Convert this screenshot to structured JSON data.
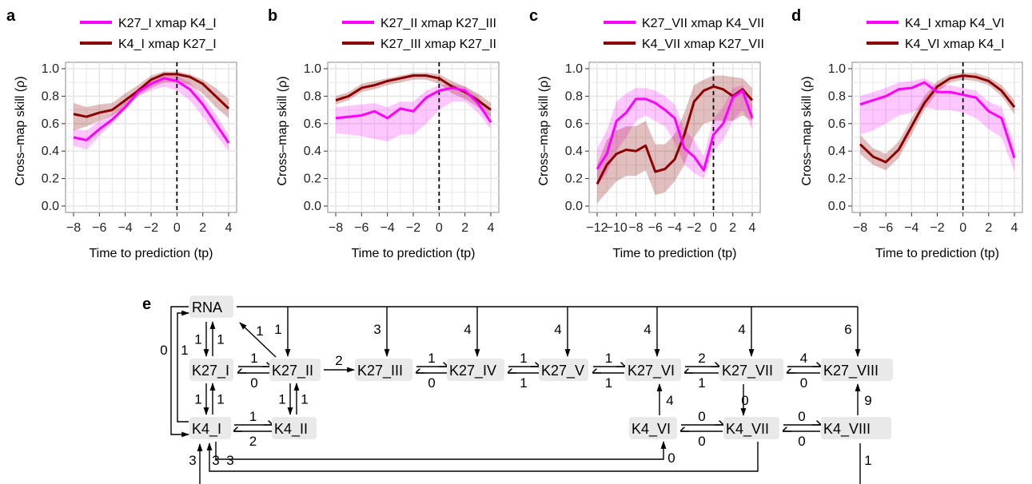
{
  "colors": {
    "magenta": "#ff00ff",
    "darkred": "#8b0000",
    "grid": "#e6e6e6",
    "node_bg": "#e9e9e9"
  },
  "chart_data": [
    {
      "panel": "a",
      "type": "line",
      "xlabel": "Time to prediction (tp)",
      "ylabel": "Cross–map skill (ρ)",
      "xlim": [
        -8,
        4
      ],
      "ylim": [
        0,
        1
      ],
      "xticks": [
        "−8",
        "−6",
        "−4",
        "−2",
        "0",
        "2",
        "4"
      ],
      "yticks": [
        "0.0",
        "0.2",
        "0.4",
        "0.6",
        "0.8",
        "1.0"
      ],
      "vline": 0,
      "grid": true,
      "legend": "top",
      "x": [
        -8,
        -7,
        -6,
        -5,
        -4,
        -3,
        -2,
        -1,
        0,
        1,
        2,
        3,
        4
      ],
      "series": [
        {
          "name": "K27_I xmap K4_I",
          "color": "magenta",
          "values": [
            0.5,
            0.48,
            0.56,
            0.63,
            0.72,
            0.83,
            0.89,
            0.93,
            0.91,
            0.85,
            0.74,
            0.6,
            0.46
          ],
          "lower": [
            0.44,
            0.41,
            0.51,
            0.6,
            0.7,
            0.8,
            0.84,
            0.87,
            0.84,
            0.77,
            0.65,
            0.52,
            0.4
          ],
          "upper": [
            0.56,
            0.55,
            0.62,
            0.67,
            0.76,
            0.86,
            0.92,
            0.95,
            0.95,
            0.9,
            0.8,
            0.67,
            0.52
          ]
        },
        {
          "name": "K4_I xmap K27_I",
          "color": "darkred",
          "values": [
            0.67,
            0.65,
            0.68,
            0.7,
            0.77,
            0.84,
            0.92,
            0.96,
            0.96,
            0.94,
            0.89,
            0.8,
            0.71
          ],
          "lower": [
            0.55,
            0.58,
            0.62,
            0.66,
            0.72,
            0.8,
            0.86,
            0.9,
            0.9,
            0.88,
            0.82,
            0.72,
            0.64
          ],
          "upper": [
            0.75,
            0.72,
            0.74,
            0.75,
            0.82,
            0.88,
            0.95,
            0.98,
            0.98,
            0.96,
            0.92,
            0.86,
            0.78
          ]
        }
      ]
    },
    {
      "panel": "b",
      "type": "line",
      "xlabel": "Time to prediction (tp)",
      "ylabel": "Cross–map skill (ρ)",
      "xlim": [
        -8,
        4
      ],
      "ylim": [
        0,
        1
      ],
      "xticks": [
        "−8",
        "−6",
        "−4",
        "−2",
        "0",
        "2",
        "4"
      ],
      "yticks": [
        "0.0",
        "0.2",
        "0.4",
        "0.6",
        "0.8",
        "1.0"
      ],
      "vline": 0,
      "grid": true,
      "legend": "top",
      "x": [
        -8,
        -7,
        -6,
        -5,
        -4,
        -3,
        -2,
        -1,
        0,
        1,
        2,
        3,
        4
      ],
      "series": [
        {
          "name": "K27_II xmap K27_III",
          "color": "magenta",
          "values": [
            0.64,
            0.65,
            0.66,
            0.69,
            0.64,
            0.71,
            0.69,
            0.79,
            0.84,
            0.86,
            0.84,
            0.75,
            0.61
          ],
          "lower": [
            0.53,
            0.52,
            0.51,
            0.49,
            0.47,
            0.52,
            0.52,
            0.6,
            0.7,
            0.76,
            0.76,
            0.68,
            0.56
          ],
          "upper": [
            0.72,
            0.73,
            0.74,
            0.75,
            0.72,
            0.76,
            0.76,
            0.84,
            0.88,
            0.89,
            0.87,
            0.8,
            0.67
          ]
        },
        {
          "name": "K27_III xmap K27_II",
          "color": "darkred",
          "values": [
            0.77,
            0.8,
            0.86,
            0.88,
            0.91,
            0.93,
            0.95,
            0.95,
            0.93,
            0.87,
            0.83,
            0.77,
            0.7
          ],
          "lower": [
            0.74,
            0.77,
            0.83,
            0.85,
            0.88,
            0.9,
            0.92,
            0.92,
            0.89,
            0.82,
            0.78,
            0.72,
            0.65
          ],
          "upper": [
            0.8,
            0.83,
            0.89,
            0.91,
            0.93,
            0.95,
            0.97,
            0.97,
            0.96,
            0.91,
            0.87,
            0.82,
            0.75
          ]
        }
      ]
    },
    {
      "panel": "c",
      "type": "line",
      "xlabel": "Time to prediction (tp)",
      "ylabel": "Cross–map skill (ρ)",
      "xlim": [
        -12,
        4
      ],
      "ylim": [
        0,
        1
      ],
      "xticks": [
        "−12",
        "−10",
        "−8",
        "−6",
        "−4",
        "−2",
        "0",
        "2",
        "4"
      ],
      "yticks": [
        "0.0",
        "0.2",
        "0.4",
        "0.6",
        "0.8",
        "1.0"
      ],
      "vline": 0,
      "grid": true,
      "legend": "top",
      "x": [
        -12,
        -11,
        -10,
        -9,
        -8,
        -7,
        -6,
        -5,
        -4,
        -3,
        -2,
        -1,
        0,
        1,
        2,
        3,
        4
      ],
      "series": [
        {
          "name": "K27_VII xmap K4_VII",
          "color": "magenta",
          "values": [
            0.27,
            0.38,
            0.62,
            0.68,
            0.78,
            0.78,
            0.75,
            0.7,
            0.64,
            0.42,
            0.36,
            0.26,
            0.52,
            0.6,
            0.79,
            0.84,
            0.64
          ],
          "lower": [
            0.15,
            0.24,
            0.4,
            0.5,
            0.62,
            0.66,
            0.62,
            0.58,
            0.46,
            0.3,
            0.24,
            0.2,
            0.4,
            0.48,
            0.62,
            0.7,
            0.56
          ],
          "upper": [
            0.42,
            0.55,
            0.76,
            0.82,
            0.86,
            0.86,
            0.84,
            0.8,
            0.74,
            0.56,
            0.48,
            0.36,
            0.64,
            0.72,
            0.86,
            0.88,
            0.74
          ]
        },
        {
          "name": "K4_VII xmap K27_VII",
          "color": "darkred",
          "values": [
            0.16,
            0.3,
            0.38,
            0.41,
            0.4,
            0.44,
            0.25,
            0.27,
            0.34,
            0.52,
            0.76,
            0.84,
            0.87,
            0.85,
            0.8,
            0.85,
            0.77
          ],
          "lower": [
            0.02,
            0.1,
            0.18,
            0.22,
            0.22,
            0.26,
            0.08,
            0.1,
            0.18,
            0.3,
            0.5,
            0.6,
            0.62,
            0.62,
            0.62,
            0.66,
            0.62
          ],
          "upper": [
            0.3,
            0.48,
            0.55,
            0.58,
            0.58,
            0.62,
            0.45,
            0.45,
            0.52,
            0.68,
            0.88,
            0.92,
            0.95,
            0.95,
            0.94,
            0.93,
            0.86
          ]
        }
      ]
    },
    {
      "panel": "d",
      "type": "line",
      "xlabel": "Time to prediction (tp)",
      "ylabel": "Cross–map skill (ρ)",
      "xlim": [
        -8,
        4
      ],
      "ylim": [
        0,
        1
      ],
      "xticks": [
        "−8",
        "−6",
        "−4",
        "−2",
        "0",
        "2",
        "4"
      ],
      "yticks": [
        "0.0",
        "0.2",
        "0.4",
        "0.6",
        "0.8",
        "1.0"
      ],
      "vline": 0,
      "grid": true,
      "legend": "top",
      "x": [
        -8,
        -7,
        -6,
        -5,
        -4,
        -3,
        -2,
        -1,
        0,
        1,
        2,
        3,
        4
      ],
      "series": [
        {
          "name": "K4_I xmap K4_VI",
          "color": "magenta",
          "values": [
            0.74,
            0.77,
            0.8,
            0.85,
            0.86,
            0.9,
            0.83,
            0.83,
            0.81,
            0.79,
            0.69,
            0.64,
            0.35
          ],
          "lower": [
            0.52,
            0.55,
            0.6,
            0.66,
            0.68,
            0.72,
            0.7,
            0.7,
            0.68,
            0.64,
            0.56,
            0.5,
            0.25
          ],
          "upper": [
            0.8,
            0.83,
            0.86,
            0.9,
            0.91,
            0.93,
            0.88,
            0.88,
            0.86,
            0.84,
            0.76,
            0.72,
            0.44
          ]
        },
        {
          "name": "K4_VI xmap K4_I",
          "color": "darkred",
          "values": [
            0.45,
            0.36,
            0.32,
            0.41,
            0.58,
            0.75,
            0.87,
            0.93,
            0.95,
            0.94,
            0.91,
            0.84,
            0.72
          ],
          "lower": [
            0.38,
            0.3,
            0.26,
            0.35,
            0.52,
            0.7,
            0.83,
            0.9,
            0.92,
            0.91,
            0.88,
            0.8,
            0.67
          ],
          "upper": [
            0.52,
            0.42,
            0.38,
            0.47,
            0.64,
            0.8,
            0.91,
            0.96,
            0.97,
            0.97,
            0.94,
            0.88,
            0.77
          ]
        }
      ]
    }
  ],
  "network": {
    "panel_label": "e",
    "nodes": [
      "RNA",
      "K27_I",
      "K27_II",
      "K27_III",
      "K27_IV",
      "K27_V",
      "K27_VI",
      "K27_VII",
      "K27_VIII",
      "K4_I",
      "K4_II",
      "K4_VI",
      "K4_VII",
      "K4_VIII"
    ],
    "edges": [
      {
        "from": "RNA",
        "to": "K27_I",
        "label": "1"
      },
      {
        "from": "K27_I",
        "to": "RNA",
        "label": "1"
      },
      {
        "from": "K27_II",
        "to": "RNA",
        "label": "1"
      },
      {
        "from": "RNA",
        "to": "K27_II",
        "label": "1"
      },
      {
        "from": "RNA",
        "to": "K27_III",
        "label": "3"
      },
      {
        "from": "RNA",
        "to": "K27_IV",
        "label": "4"
      },
      {
        "from": "RNA",
        "to": "K27_V",
        "label": "4"
      },
      {
        "from": "RNA",
        "to": "K27_VI",
        "label": "4"
      },
      {
        "from": "RNA",
        "to": "K27_VII",
        "label": "4"
      },
      {
        "from": "RNA",
        "to": "K27_VIII",
        "label": "6"
      },
      {
        "from": "RNA",
        "to": "K4_I",
        "label": "0"
      },
      {
        "from": "K4_I",
        "to": "RNA",
        "label": "1"
      },
      {
        "from": "K27_I",
        "to": "K27_II",
        "label": "1"
      },
      {
        "from": "K27_II",
        "to": "K27_I",
        "label": "0"
      },
      {
        "from": "K27_II",
        "to": "K27_III",
        "label": "2"
      },
      {
        "from": "K27_III",
        "to": "K27_IV",
        "label": "1"
      },
      {
        "from": "K27_IV",
        "to": "K27_III",
        "label": "0"
      },
      {
        "from": "K27_IV",
        "to": "K27_V",
        "label": "1"
      },
      {
        "from": "K27_V",
        "to": "K27_IV",
        "label": "1"
      },
      {
        "from": "K27_V",
        "to": "K27_VI",
        "label": "1"
      },
      {
        "from": "K27_VI",
        "to": "K27_V",
        "label": "1"
      },
      {
        "from": "K27_VI",
        "to": "K27_VII",
        "label": "2"
      },
      {
        "from": "K27_VII",
        "to": "K27_VI",
        "label": "1"
      },
      {
        "from": "K27_VII",
        "to": "K27_VIII",
        "label": "4"
      },
      {
        "from": "K27_VIII",
        "to": "K27_VII",
        "label": "0"
      },
      {
        "from": "K27_I",
        "to": "K4_I",
        "label": "1"
      },
      {
        "from": "K4_I",
        "to": "K27_I",
        "label": "1"
      },
      {
        "from": "K27_II",
        "to": "K4_II",
        "label": "1"
      },
      {
        "from": "K4_II",
        "to": "K27_II",
        "label": "1"
      },
      {
        "from": "K4_I",
        "to": "K4_II",
        "label": "1"
      },
      {
        "from": "K4_II",
        "to": "K4_I",
        "label": "2"
      },
      {
        "from": "K4_VI",
        "to": "K27_VI",
        "label": "4"
      },
      {
        "from": "K27_VII",
        "to": "K4_VII",
        "label": "0"
      },
      {
        "from": "K4_VIII",
        "to": "K27_VIII",
        "label": "9"
      },
      {
        "from": "K4_VI",
        "to": "K4_VII",
        "label": "0"
      },
      {
        "from": "K4_VII",
        "to": "K4_VI",
        "label": "0"
      },
      {
        "from": "K4_VII",
        "to": "K4_VIII",
        "label": "0"
      },
      {
        "from": "K4_VIII",
        "to": "K4_VII",
        "label": "0"
      },
      {
        "from": "K4_I",
        "to": "K4_VI",
        "label": "0"
      },
      {
        "from": "K4_VII",
        "to": "K4_I",
        "label": "3"
      },
      {
        "from": "K4_I",
        "to": "K4_VII",
        "label": "3"
      },
      {
        "from": "K4_VIII",
        "to": "K4_I",
        "label": "3"
      },
      {
        "from": "K4_I",
        "to": "K4_VIII",
        "label": "1"
      }
    ]
  }
}
